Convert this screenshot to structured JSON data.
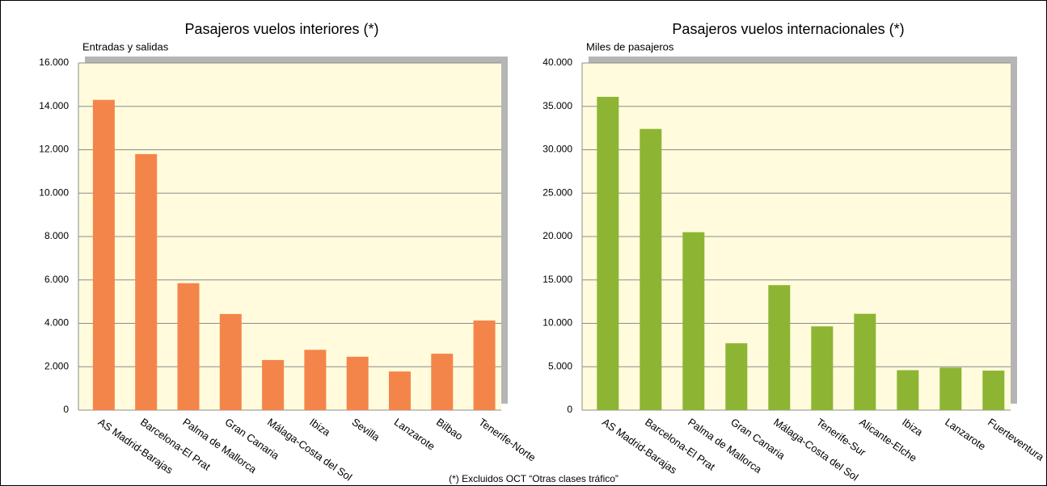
{
  "chart_data": [
    {
      "type": "bar",
      "title": "Pasajeros vuelos interiores (*)",
      "subtitle": "Entradas y salidas",
      "categories": [
        "AS Madrid-Barajas",
        "Barcelona-El Prat",
        "Palma  de Mallorca",
        "Gran Canaria",
        "Málaga-Costa del Sol",
        "Ibiza",
        "Sevilla",
        "Lanzarote",
        "Bilbao",
        "Tenerife-Norte"
      ],
      "values": [
        14300,
        11800,
        5850,
        4430,
        2310,
        2780,
        2460,
        1780,
        2600,
        4130
      ],
      "color": "#f4854a",
      "ylim": [
        0,
        16000
      ],
      "yticks": [
        0,
        {
          "value": 2000,
          "label": "2.000"
        },
        {
          "value": 4000,
          "label": "4.000"
        },
        {
          "value": 6000,
          "label": "6.000"
        },
        {
          "value": 8000,
          "label": "8.000"
        },
        {
          "value": 10000,
          "label": "10.000"
        },
        {
          "value": 12000,
          "label": "12.000"
        },
        {
          "value": 14000,
          "label": "14.000"
        },
        {
          "value": 16000,
          "label": "16.000"
        }
      ],
      "grid": true
    },
    {
      "type": "bar",
      "title": "Pasajeros vuelos internacionales (*)",
      "subtitle": "Miles de pasajeros",
      "categories": [
        "AS Madrid-Barajas",
        "Barcelona-El Prat",
        "Palma  de Mallorca",
        "Gran Canaria",
        "Málaga-Costa del Sol",
        "Tenerife-Sur",
        "Alicante-Elche",
        "Ibiza",
        "Lanzarote",
        "Fuerteventura"
      ],
      "values": [
        36100,
        32400,
        20500,
        7700,
        14400,
        9650,
        11100,
        4600,
        4900,
        4550
      ],
      "color": "#8db533",
      "ylim": [
        0,
        40000
      ],
      "yticks": [
        0,
        {
          "value": 5000,
          "label": "5.000"
        },
        {
          "value": 10000,
          "label": "10.000"
        },
        {
          "value": 15000,
          "label": "15.000"
        },
        {
          "value": 20000,
          "label": "20.000"
        },
        {
          "value": 25000,
          "label": "25.000"
        },
        {
          "value": 30000,
          "label": "30.000"
        },
        {
          "value": 35000,
          "label": "35.000"
        },
        {
          "value": 40000,
          "label": "40.000"
        }
      ],
      "grid": true
    }
  ],
  "footnote": "(*) Excluidos OCT “Otras clases tráfico”"
}
